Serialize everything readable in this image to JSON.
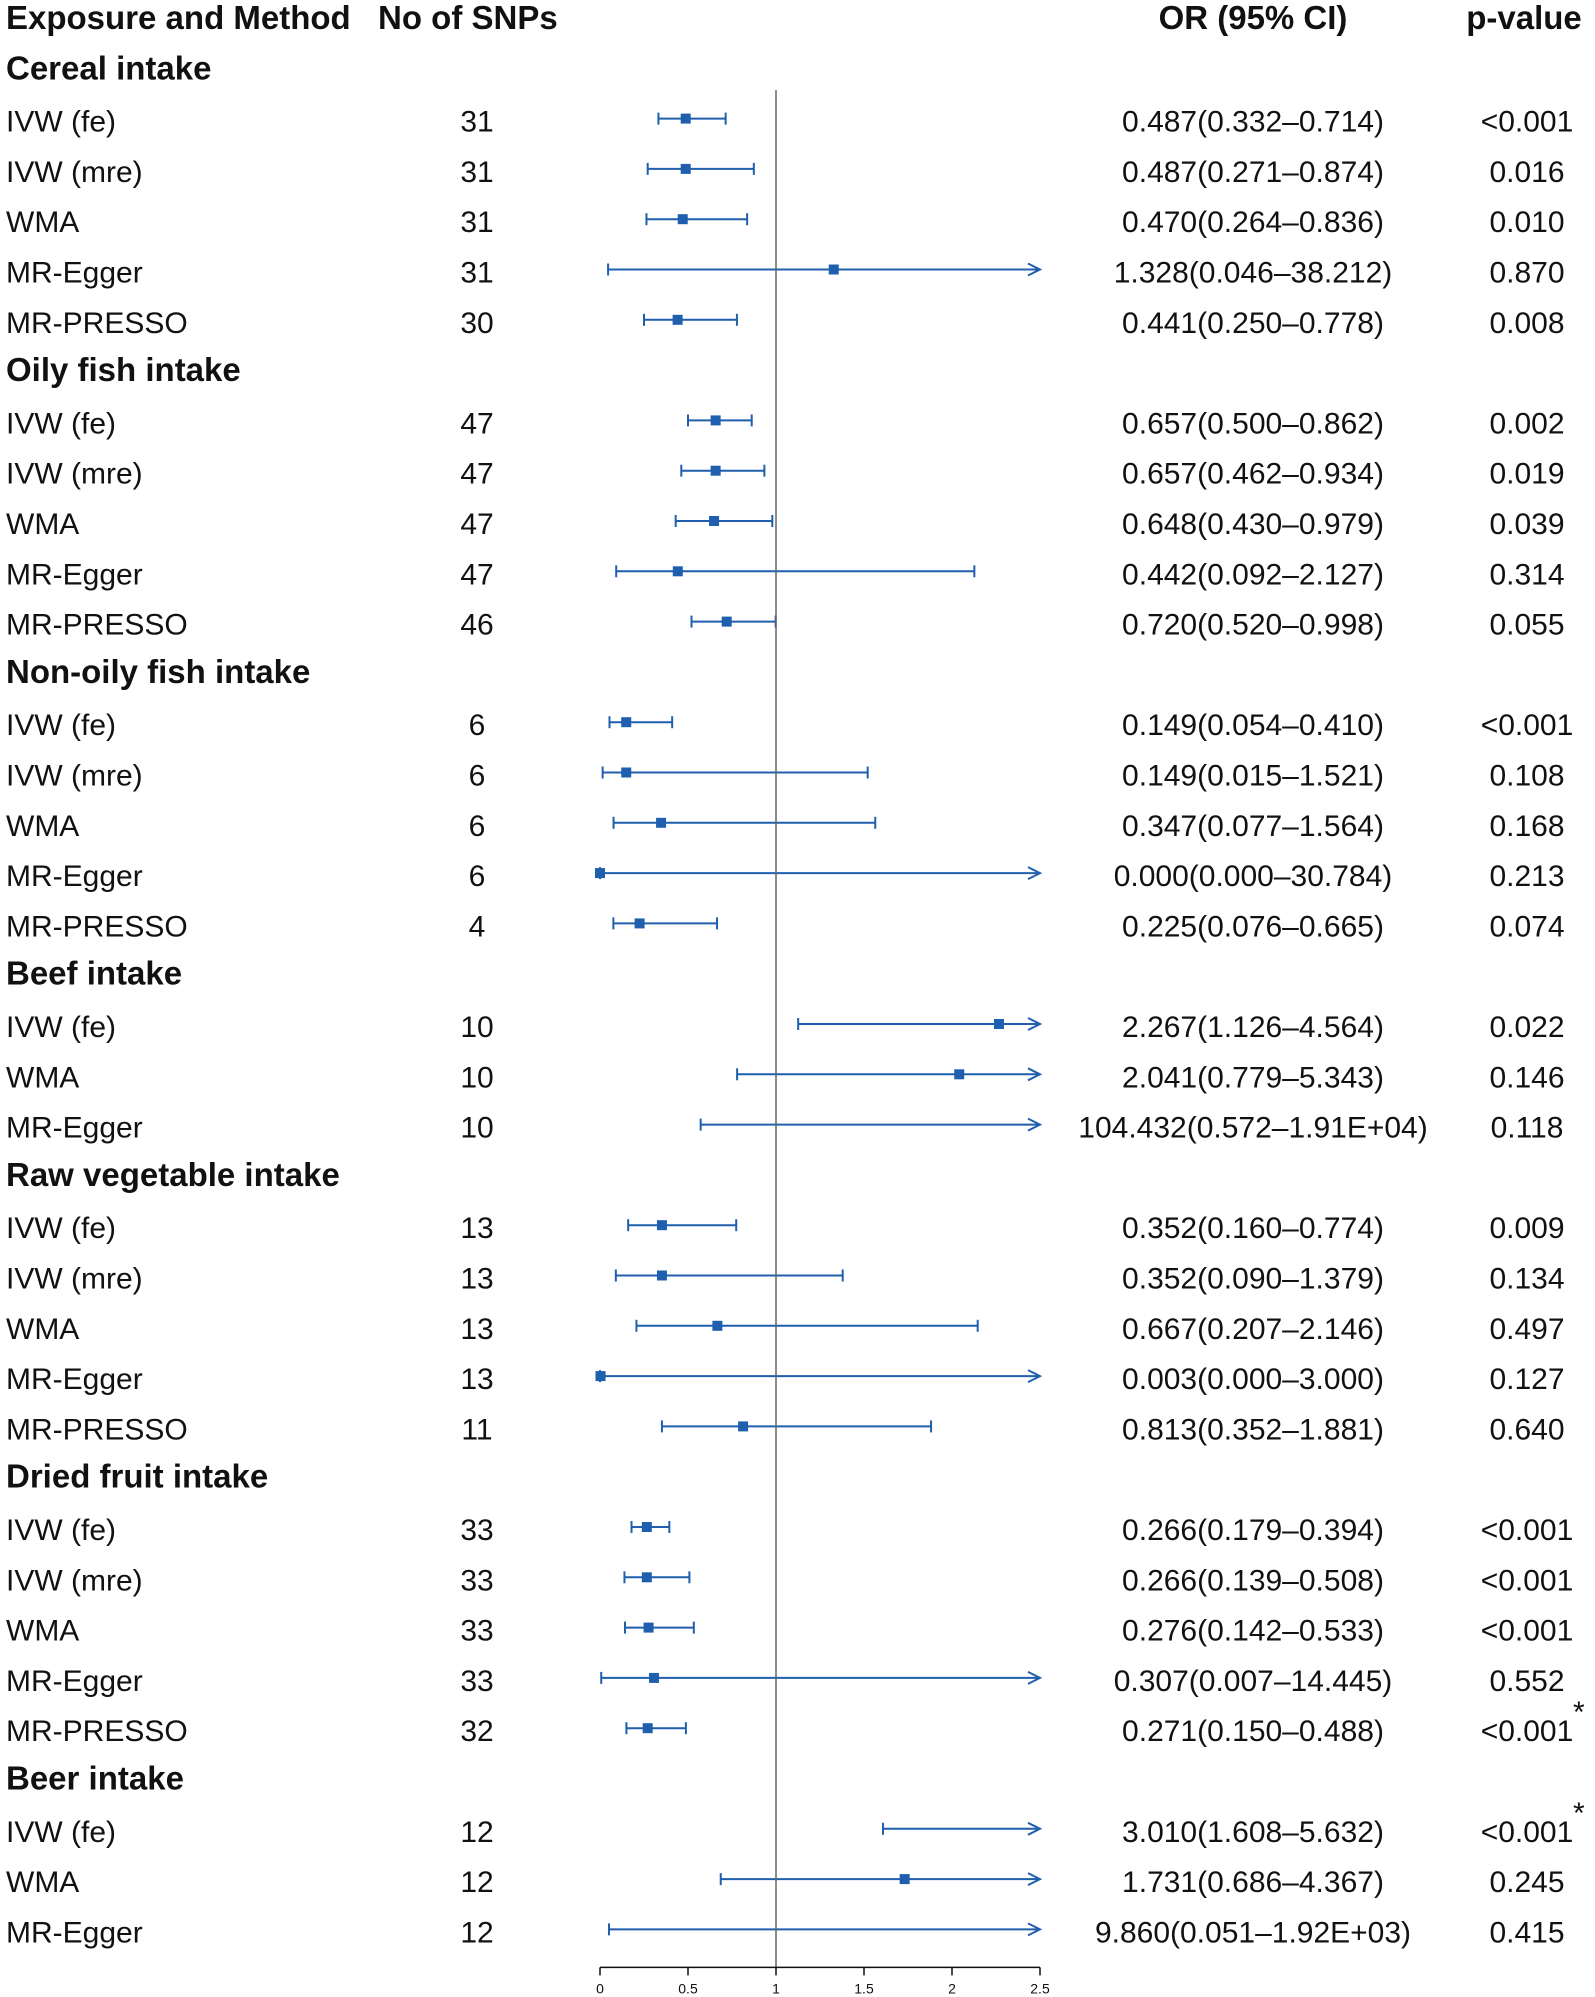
{
  "chart_data": {
    "type": "forest",
    "headers": {
      "exposure": "Exposure and Method",
      "snps": "No of SNPs",
      "or": "OR (95% CI)",
      "p": "p-value"
    },
    "axis": {
      "min": 0,
      "max": 2.5,
      "ref": 1,
      "ticks": [
        0,
        0.5,
        1,
        1.5,
        2,
        2.5
      ],
      "tick_labels": [
        "0",
        "0.5",
        "1",
        "1.5",
        "2",
        "2.5"
      ]
    },
    "groups": [
      {
        "name": "Cereal intake",
        "rows": [
          {
            "method": "IVW (fe)",
            "snps": "31",
            "or": 0.487,
            "lo": 0.332,
            "hi": 0.714,
            "or_text": "0.487(0.332–0.714)",
            "p": "<0.001",
            "star": ""
          },
          {
            "method": "IVW (mre)",
            "snps": "31",
            "or": 0.487,
            "lo": 0.271,
            "hi": 0.874,
            "or_text": "0.487(0.271–0.874)",
            "p": "0.016",
            "star": ""
          },
          {
            "method": "WMA",
            "snps": "31",
            "or": 0.47,
            "lo": 0.264,
            "hi": 0.836,
            "or_text": "0.470(0.264–0.836)",
            "p": "0.010",
            "star": ""
          },
          {
            "method": "MR-Egger",
            "snps": "31",
            "or": 1.328,
            "lo": 0.046,
            "hi": 38.212,
            "or_text": "1.328(0.046–38.212)",
            "p": "0.870",
            "star": ""
          },
          {
            "method": "MR-PRESSO",
            "snps": "30",
            "or": 0.441,
            "lo": 0.25,
            "hi": 0.778,
            "or_text": "0.441(0.250–0.778)",
            "p": "0.008",
            "star": ""
          }
        ]
      },
      {
        "name": "Oily fish intake",
        "rows": [
          {
            "method": "IVW (fe)",
            "snps": "47",
            "or": 0.657,
            "lo": 0.5,
            "hi": 0.862,
            "or_text": "0.657(0.500–0.862)",
            "p": "0.002",
            "star": ""
          },
          {
            "method": "IVW (mre)",
            "snps": "47",
            "or": 0.657,
            "lo": 0.462,
            "hi": 0.934,
            "or_text": "0.657(0.462–0.934)",
            "p": "0.019",
            "star": ""
          },
          {
            "method": "WMA",
            "snps": "47",
            "or": 0.648,
            "lo": 0.43,
            "hi": 0.979,
            "or_text": "0.648(0.430–0.979)",
            "p": "0.039",
            "star": ""
          },
          {
            "method": "MR-Egger",
            "snps": "47",
            "or": 0.442,
            "lo": 0.092,
            "hi": 2.127,
            "or_text": "0.442(0.092–2.127)",
            "p": "0.314",
            "star": ""
          },
          {
            "method": "MR-PRESSO",
            "snps": "46",
            "or": 0.72,
            "lo": 0.52,
            "hi": 0.998,
            "or_text": "0.720(0.520–0.998)",
            "p": "0.055",
            "star": ""
          }
        ]
      },
      {
        "name": "Non-oily fish intake",
        "rows": [
          {
            "method": "IVW (fe)",
            "snps": "6",
            "or": 0.149,
            "lo": 0.054,
            "hi": 0.41,
            "or_text": "0.149(0.054–0.410)",
            "p": "<0.001",
            "star": ""
          },
          {
            "method": "IVW (mre)",
            "snps": "6",
            "or": 0.149,
            "lo": 0.015,
            "hi": 1.521,
            "or_text": "0.149(0.015–1.521)",
            "p": "0.108",
            "star": ""
          },
          {
            "method": "WMA",
            "snps": "6",
            "or": 0.347,
            "lo": 0.077,
            "hi": 1.564,
            "or_text": "0.347(0.077–1.564)",
            "p": "0.168",
            "star": ""
          },
          {
            "method": "MR-Egger",
            "snps": "6",
            "or": 0.0,
            "lo": 0.0,
            "hi": 30.784,
            "or_text": "0.000(0.000–30.784)",
            "p": "0.213",
            "star": ""
          },
          {
            "method": "MR-PRESSO",
            "snps": "4",
            "or": 0.225,
            "lo": 0.076,
            "hi": 0.665,
            "or_text": "0.225(0.076–0.665)",
            "p": "0.074",
            "star": ""
          }
        ]
      },
      {
        "name": "Beef intake",
        "rows": [
          {
            "method": "IVW (fe)",
            "snps": "10",
            "or": 2.267,
            "lo": 1.126,
            "hi": 4.564,
            "or_text": "2.267(1.126–4.564)",
            "p": "0.022",
            "star": ""
          },
          {
            "method": "WMA",
            "snps": "10",
            "or": 2.041,
            "lo": 0.779,
            "hi": 5.343,
            "or_text": "2.041(0.779–5.343)",
            "p": "0.146",
            "star": ""
          },
          {
            "method": "MR-Egger",
            "snps": "10",
            "or": 104.432,
            "lo": 0.572,
            "hi": 19100,
            "or_text": "104.432(0.572–1.91E+04)",
            "p": "0.118",
            "star": ""
          }
        ]
      },
      {
        "name": "Raw vegetable intake",
        "rows": [
          {
            "method": "IVW (fe)",
            "snps": "13",
            "or": 0.352,
            "lo": 0.16,
            "hi": 0.774,
            "or_text": "0.352(0.160–0.774)",
            "p": "0.009",
            "star": ""
          },
          {
            "method": "IVW (mre)",
            "snps": "13",
            "or": 0.352,
            "lo": 0.09,
            "hi": 1.379,
            "or_text": "0.352(0.090–1.379)",
            "p": "0.134",
            "star": ""
          },
          {
            "method": "WMA",
            "snps": "13",
            "or": 0.667,
            "lo": 0.207,
            "hi": 2.146,
            "or_text": "0.667(0.207–2.146)",
            "p": "0.497",
            "star": ""
          },
          {
            "method": "MR-Egger",
            "snps": "13",
            "or": 0.003,
            "lo": 0.0,
            "hi": 3.0,
            "or_text": "0.003(0.000–3.000)",
            "p": "0.127",
            "star": ""
          },
          {
            "method": "MR-PRESSO",
            "snps": "11",
            "or": 0.813,
            "lo": 0.352,
            "hi": 1.881,
            "or_text": "0.813(0.352–1.881)",
            "p": "0.640",
            "star": ""
          }
        ]
      },
      {
        "name": "Dried fruit intake",
        "rows": [
          {
            "method": "IVW (fe)",
            "snps": "33",
            "or": 0.266,
            "lo": 0.179,
            "hi": 0.394,
            "or_text": "0.266(0.179–0.394)",
            "p": "<0.001",
            "star": ""
          },
          {
            "method": "IVW (mre)",
            "snps": "33",
            "or": 0.266,
            "lo": 0.139,
            "hi": 0.508,
            "or_text": "0.266(0.139–0.508)",
            "p": "<0.001",
            "star": ""
          },
          {
            "method": "WMA",
            "snps": "33",
            "or": 0.276,
            "lo": 0.142,
            "hi": 0.533,
            "or_text": "0.276(0.142–0.533)",
            "p": "<0.001",
            "star": ""
          },
          {
            "method": "MR-Egger",
            "snps": "33",
            "or": 0.307,
            "lo": 0.007,
            "hi": 14.445,
            "or_text": "0.307(0.007–14.445)",
            "p": "0.552",
            "star": ""
          },
          {
            "method": "MR-PRESSO",
            "snps": "32",
            "or": 0.271,
            "lo": 0.15,
            "hi": 0.488,
            "or_text": "0.271(0.150–0.488)",
            "p": "<0.001",
            "star": "*"
          }
        ]
      },
      {
        "name": "Beer intake",
        "rows": [
          {
            "method": "IVW (fe)",
            "snps": "12",
            "or": 3.01,
            "lo": 1.608,
            "hi": 5.632,
            "or_text": "3.010(1.608–5.632)",
            "p": "<0.001",
            "star": "*"
          },
          {
            "method": "WMA",
            "snps": "12",
            "or": 1.731,
            "lo": 0.686,
            "hi": 4.367,
            "or_text": "1.731(0.686–4.367)",
            "p": "0.245",
            "star": ""
          },
          {
            "method": "MR-Egger",
            "snps": "12",
            "or": 9.86,
            "lo": 0.051,
            "hi": 1920,
            "or_text": "9.860(0.051–1.92E+03)",
            "p": "0.415",
            "star": ""
          }
        ]
      }
    ]
  }
}
